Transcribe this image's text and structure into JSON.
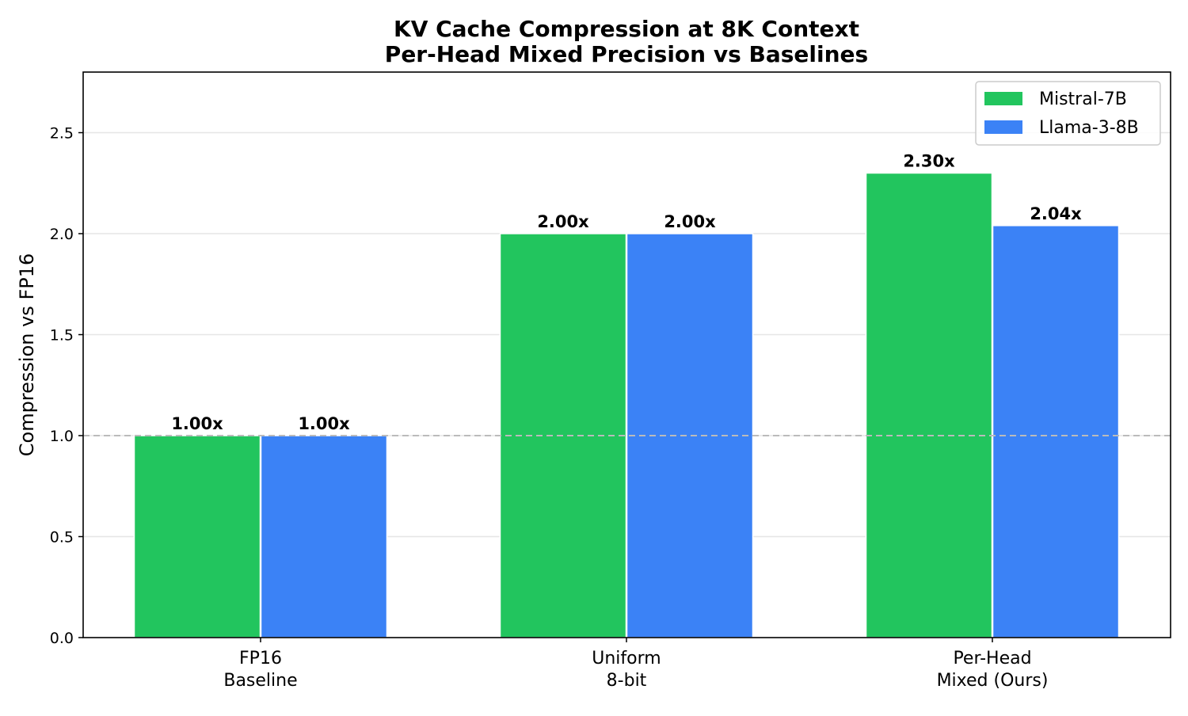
{
  "chart_data": {
    "type": "bar",
    "title": "KV Cache Compression at 8K Context",
    "subtitle": "Per-Head Mixed Precision vs Baselines",
    "xlabel": "",
    "ylabel": "Compression vs FP16",
    "ylim": [
      0,
      2.8
    ],
    "yticks": [
      0.0,
      0.5,
      1.0,
      1.5,
      2.0,
      2.5
    ],
    "ytick_labels": [
      "0.0",
      "0.5",
      "1.0",
      "1.5",
      "2.0",
      "2.5"
    ],
    "categories": [
      [
        "FP16",
        "Baseline"
      ],
      [
        "Uniform",
        "8-bit"
      ],
      [
        "Per-Head",
        "Mixed (Ours)"
      ]
    ],
    "series": [
      {
        "name": "Mistral-7B",
        "color": "#22c55e",
        "values": [
          1.0,
          2.0,
          2.3
        ],
        "labels": [
          "1.00x",
          "2.00x",
          "2.30x"
        ]
      },
      {
        "name": "Llama-3-8B",
        "color": "#3b82f6",
        "values": [
          1.0,
          2.0,
          2.04
        ],
        "labels": [
          "1.00x",
          "2.00x",
          "2.04x"
        ]
      }
    ],
    "reference_line": {
      "value": 1.0,
      "style": "dashed",
      "color": "#bbbbbb"
    },
    "grid": "y",
    "legend_position": "top-right"
  }
}
